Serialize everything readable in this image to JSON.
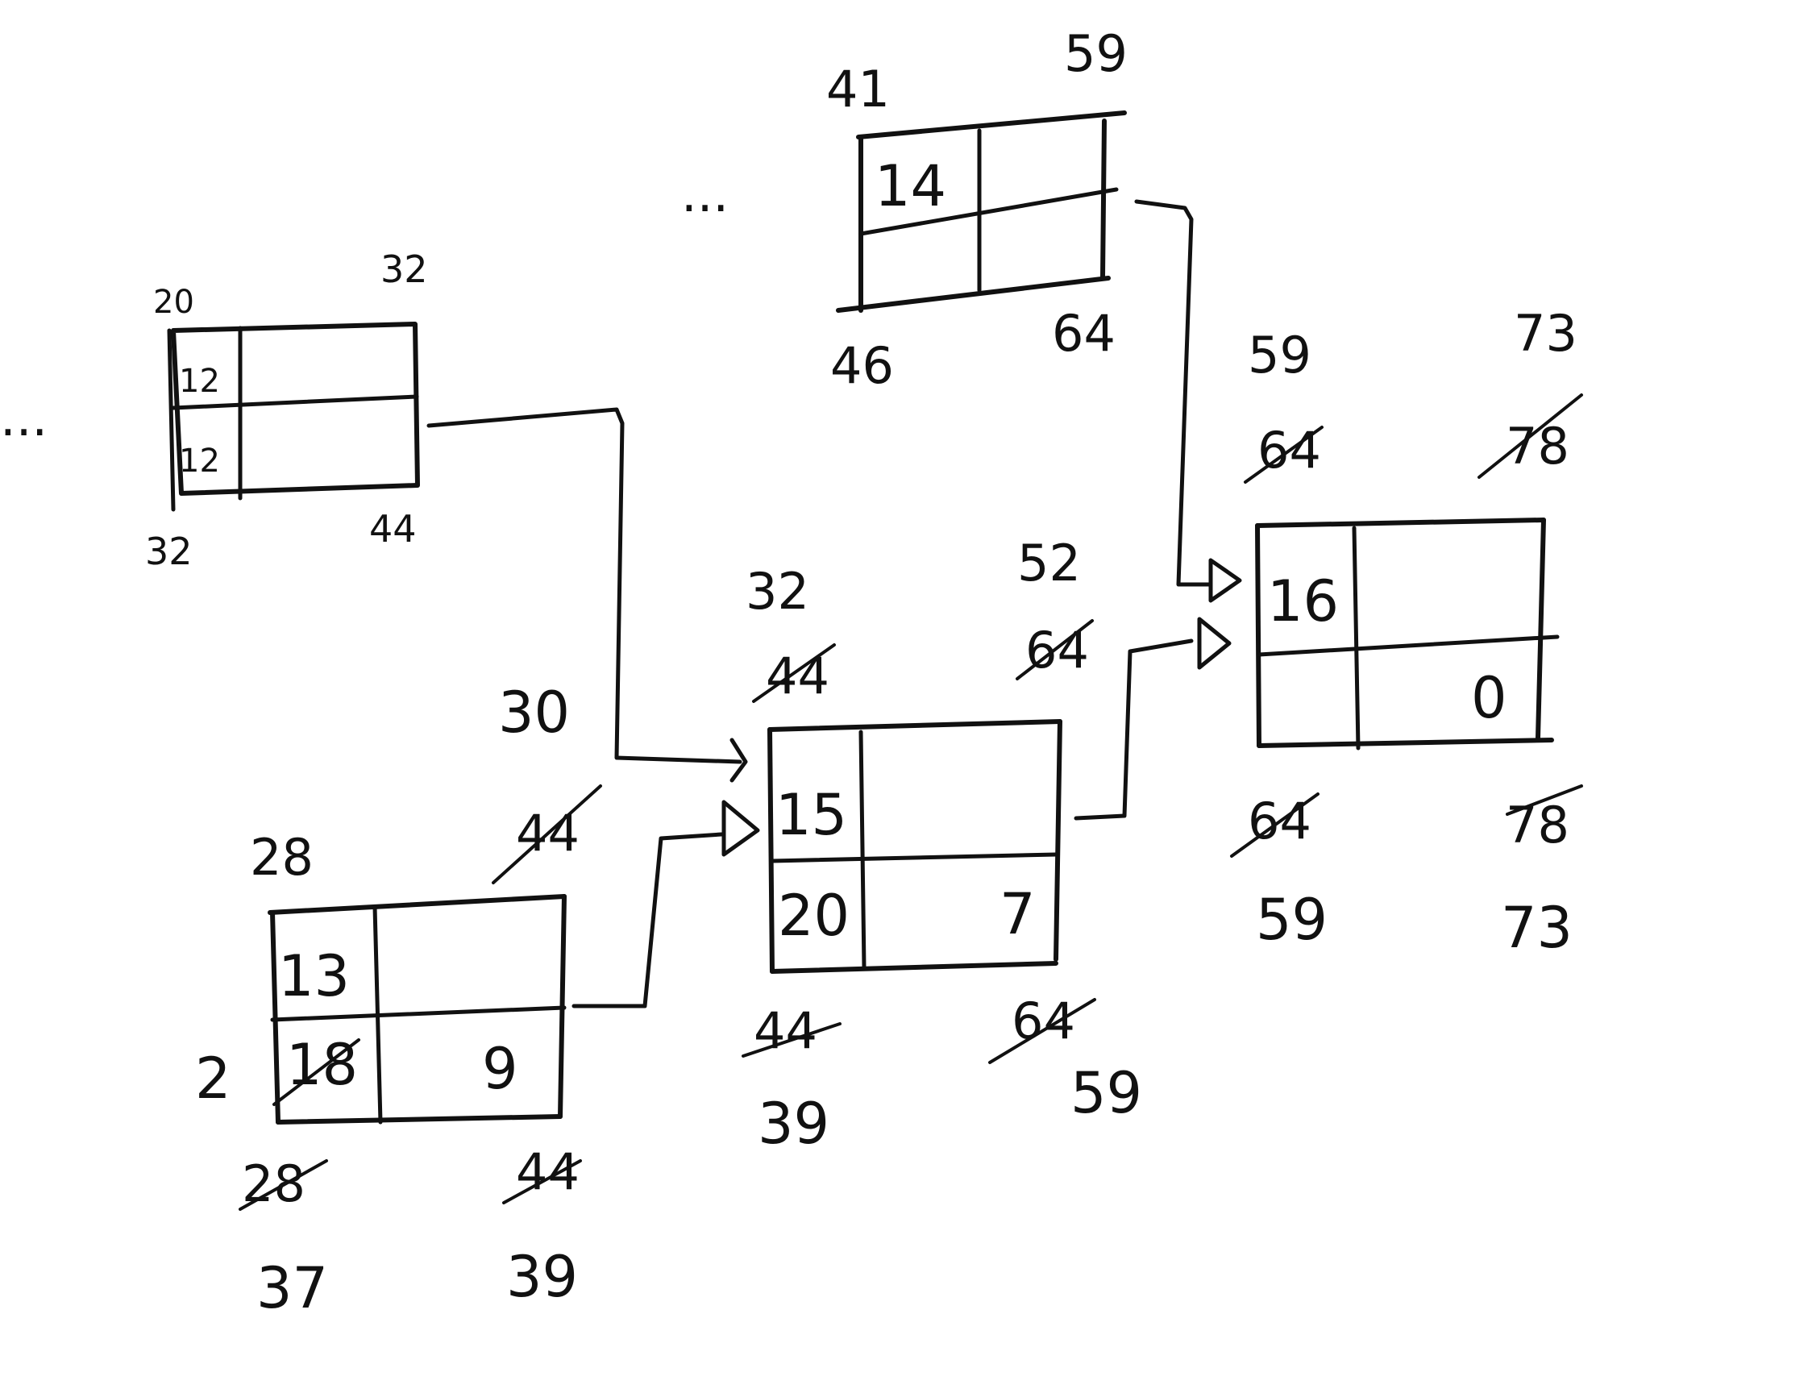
{
  "dots": {
    "left": "...",
    "top": "..."
  },
  "annotations": {
    "edge_weight": "30",
    "free_float": "2"
  },
  "nodes": {
    "n12": {
      "id_top": "12",
      "id_bottom": "12",
      "es": "20",
      "ef": "32",
      "ls": "32",
      "lf": "44"
    },
    "n14": {
      "id": "14",
      "es": "41",
      "ef": "59",
      "ls": "46",
      "lf": "64"
    },
    "n13": {
      "id": "13",
      "buffer_old": "18",
      "duration": "9",
      "es": "28",
      "ef_old": "44",
      "ls_old": "28",
      "ls": "37",
      "lf_old": "44",
      "lf": "39"
    },
    "n15": {
      "id": "15",
      "buffer": "20",
      "duration": "7",
      "es": "32",
      "es_old": "44",
      "ef": "52",
      "ef_old": "64",
      "ls_old": "44",
      "ls": "39",
      "lf_old": "64",
      "lf": "59"
    },
    "n16": {
      "id": "16",
      "duration": "0",
      "es": "59",
      "es_old": "64",
      "ef": "73",
      "ef_old": "78",
      "ls_old": "64",
      "ls": "59",
      "lf_old": "78",
      "lf": "73"
    }
  }
}
